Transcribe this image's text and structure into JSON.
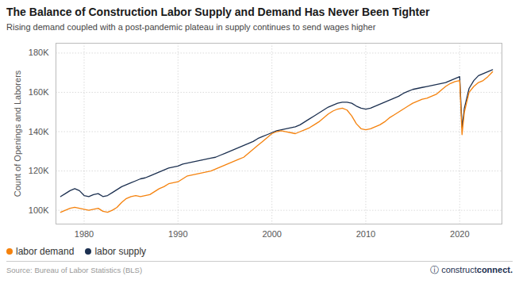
{
  "chart_data": {
    "type": "line",
    "title": "The Balance of Construction Labor Supply and Demand Has Never Been Tighter",
    "subtitle": "Rising demand coupled with a post-pandemic plateau in supply continues to send wages higher",
    "ylabel": "Count of Openings and Laborers",
    "source": "Source: Bureau of Labor Statistics (BLS)",
    "annotations": [
      "ⓘ",
      "construct",
      "connect."
    ],
    "x": [
      1977.5,
      1978.0,
      1978.5,
      1979.0,
      1979.5,
      1980.0,
      1980.5,
      1981.0,
      1981.5,
      1982.0,
      1982.5,
      1983.0,
      1983.5,
      1984.0,
      1984.5,
      1985.0,
      1985.5,
      1986.0,
      1986.5,
      1987.0,
      1987.5,
      1988.0,
      1988.5,
      1989.0,
      1989.5,
      1990.0,
      1990.5,
      1991.0,
      1991.5,
      1992.0,
      1992.5,
      1993.0,
      1993.5,
      1994.0,
      1994.5,
      1995.0,
      1995.5,
      1996.0,
      1996.5,
      1997.0,
      1997.5,
      1998.0,
      1998.5,
      1999.0,
      1999.5,
      2000.0,
      2000.5,
      2001.0,
      2001.5,
      2002.0,
      2002.5,
      2003.0,
      2003.5,
      2004.0,
      2004.5,
      2005.0,
      2005.5,
      2006.0,
      2006.5,
      2007.0,
      2007.5,
      2008.0,
      2008.5,
      2009.0,
      2009.5,
      2010.0,
      2010.5,
      2011.0,
      2011.5,
      2012.0,
      2012.5,
      2013.0,
      2013.5,
      2014.0,
      2014.5,
      2015.0,
      2015.5,
      2016.0,
      2016.5,
      2017.0,
      2017.5,
      2018.0,
      2018.5,
      2019.0,
      2019.5,
      2020.0,
      2020.25,
      2020.5,
      2021.0,
      2021.5,
      2022.0,
      2022.5,
      2023.0,
      2023.5
    ],
    "series": [
      {
        "name": "labor supply",
        "color": "#1C3050",
        "values": [
          107000,
          108500,
          110000,
          111000,
          110000,
          107500,
          107000,
          108000,
          108500,
          107000,
          107500,
          109000,
          110500,
          112000,
          113000,
          114000,
          115000,
          116000,
          116500,
          117500,
          118500,
          119500,
          120500,
          121500,
          122000,
          122500,
          123500,
          124000,
          124500,
          125000,
          125500,
          126000,
          126500,
          127000,
          128000,
          129000,
          130000,
          131000,
          132000,
          133000,
          134000,
          135000,
          136500,
          137500,
          138500,
          139500,
          140500,
          141000,
          141500,
          142000,
          142500,
          143500,
          145000,
          146500,
          148000,
          149500,
          151000,
          152500,
          153500,
          154500,
          155000,
          155000,
          154500,
          153000,
          152000,
          151500,
          152000,
          153000,
          154000,
          155000,
          156000,
          157000,
          158000,
          159500,
          160500,
          161500,
          162000,
          162500,
          163000,
          163500,
          164000,
          164500,
          165000,
          166000,
          167000,
          168000,
          142000,
          152000,
          162000,
          166000,
          168500,
          169500,
          170500,
          171500
        ]
      },
      {
        "name": "labor demand",
        "color": "#F5820D",
        "values": [
          99000,
          100000,
          101000,
          101500,
          101000,
          100500,
          100000,
          100500,
          101000,
          99500,
          99000,
          100000,
          101500,
          104000,
          106000,
          107000,
          107500,
          107000,
          107500,
          108000,
          109500,
          111000,
          112000,
          113500,
          114000,
          114500,
          116000,
          117500,
          118000,
          118500,
          119000,
          119500,
          120000,
          121000,
          122000,
          123000,
          124000,
          125000,
          126000,
          127000,
          129000,
          131000,
          133000,
          135000,
          137000,
          139000,
          140000,
          140500,
          140000,
          139500,
          139000,
          140000,
          141000,
          142000,
          143500,
          145000,
          147000,
          149000,
          150500,
          151500,
          152000,
          151000,
          148000,
          144000,
          141500,
          141000,
          141500,
          142500,
          143500,
          145000,
          147000,
          148500,
          150000,
          151500,
          153000,
          154500,
          155500,
          156500,
          157000,
          158000,
          159000,
          161000,
          163000,
          164500,
          165500,
          166000,
          138500,
          150000,
          160000,
          163000,
          165000,
          166000,
          168000,
          170500
        ]
      }
    ],
    "xlim": [
      1977.0,
      2024.5
    ],
    "xticks": [
      1980,
      1990,
      2000,
      2010,
      2020
    ],
    "ylim": [
      93000,
      185000
    ],
    "yticks": [
      {
        "value": 100000,
        "label": "100K"
      },
      {
        "value": 120000,
        "label": "120K"
      },
      {
        "value": 140000,
        "label": "140K"
      },
      {
        "value": 160000,
        "label": "160K"
      },
      {
        "value": 180000,
        "label": "180K"
      }
    ],
    "grid": true,
    "legend": "bottom"
  }
}
